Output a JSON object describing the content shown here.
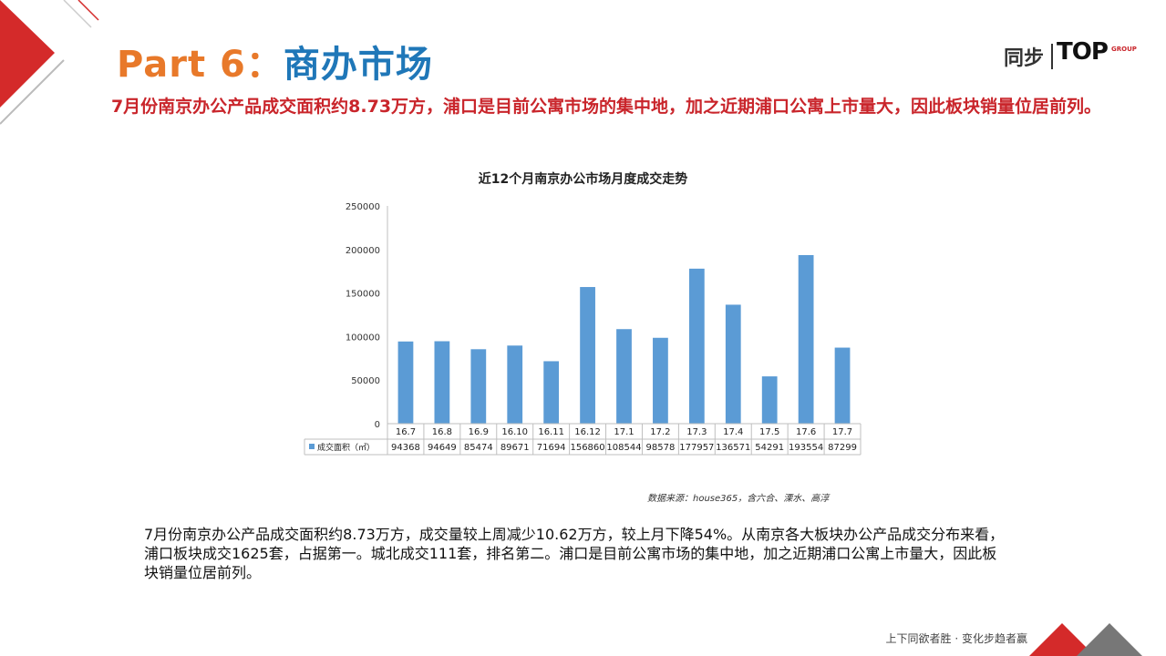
{
  "header": {
    "title_part": "Part 6",
    "title_colon": "：",
    "title_cn": "商办市场"
  },
  "logo": {
    "cn": "同步",
    "brand": "TOP",
    "group": "GROUP"
  },
  "subtitle": "7月份南京办公产品成交面积约8.73万方，浦口是目前公寓市场的集中地，加之近期浦口公寓上市量大，因此板块销量位居前列。",
  "chart_data": {
    "type": "bar",
    "title": "近12个月南京办公市场月度成交走势",
    "categories": [
      "16.7",
      "16.8",
      "16.9",
      "16.10",
      "16.11",
      "16.12",
      "17.1",
      "17.2",
      "17.3",
      "17.4",
      "17.5",
      "17.6",
      "17.7"
    ],
    "series": [
      {
        "name": "成交面积（㎡）",
        "values": [
          94368,
          94649,
          85474,
          89671,
          71694,
          156860,
          108544,
          98578,
          177957,
          136571,
          54291,
          193554,
          87299
        ]
      }
    ],
    "ylim": [
      0,
      250000
    ],
    "yticks": [
      "250000",
      "200000",
      "150000",
      "100000",
      "50000",
      "0"
    ],
    "bar_color": "#5b9bd5",
    "data_table": true
  },
  "source": "数据来源：house365，含六合、溧水、高淳",
  "body_text": "7月份南京办公产品成交面积约8.73万方，成交量较上周减少10.62万方，较上月下降54%。从南京各大板块办公产品成交分布来看，浦口板块成交1625套，占据第一。城北成交111套，排名第二。浦口是目前公寓市场的集中地，加之近期浦口公寓上市量大，因此板块销量位居前列。",
  "footer": "上下同欲者胜 · 变化步趋者赢",
  "colors": {
    "accent_red": "#c9252b",
    "orange": "#e8792a",
    "blue": "#1f77b8"
  }
}
